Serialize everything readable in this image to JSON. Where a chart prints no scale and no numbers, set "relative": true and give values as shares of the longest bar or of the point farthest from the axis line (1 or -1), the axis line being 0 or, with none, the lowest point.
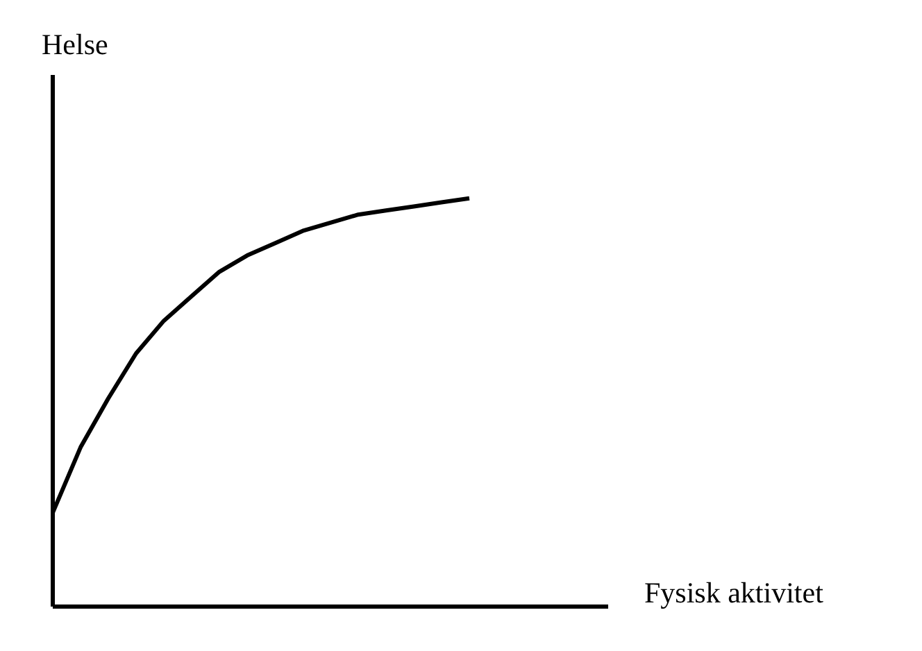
{
  "chart_data": {
    "type": "line",
    "relative": true,
    "xlabel": "Fysisk aktivitet",
    "ylabel": "Helse",
    "categories": [
      null,
      null,
      null,
      null,
      null,
      null,
      null,
      null,
      null,
      null,
      null,
      null,
      null,
      null,
      null,
      null,
      null,
      null,
      null,
      null,
      null
    ],
    "series": [
      {
        "color": "#000000",
        "values": [
          0.23,
          0.39,
          0.51,
          0.62,
          0.7,
          0.76,
          0.82,
          0.86,
          0.89,
          0.92,
          0.94,
          0.96,
          0.97,
          0.98,
          0.99,
          1,
          null,
          null,
          null,
          null,
          null
        ]
      }
    ],
    "marker": "none",
    "grid": false,
    "legend": false
  }
}
